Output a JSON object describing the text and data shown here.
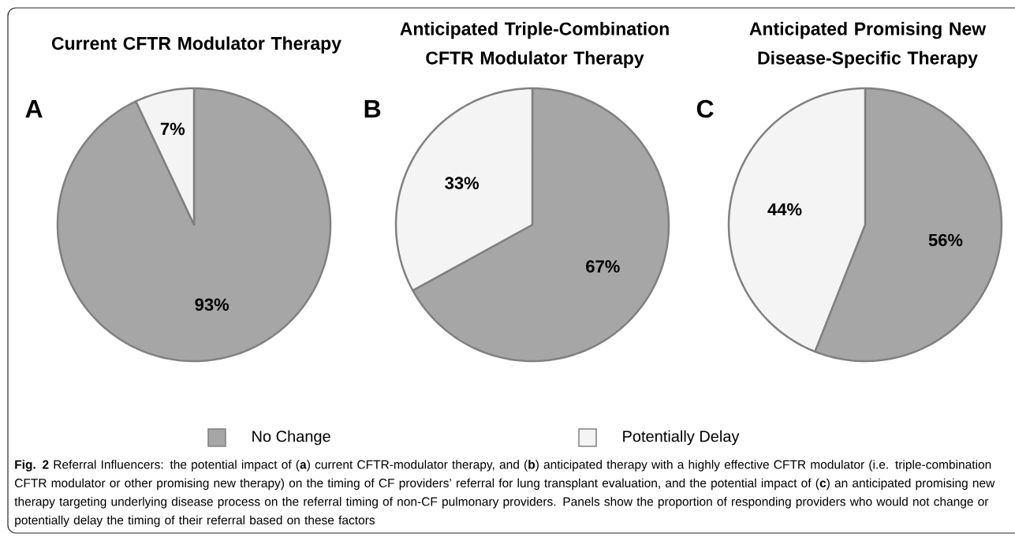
{
  "chart_data": [
    {
      "type": "pie",
      "title": "Current CFTR Modulator Therapy",
      "categories": [
        "No Change",
        "Potentially Delay"
      ],
      "values": [
        93,
        7
      ],
      "value_labels": [
        "93%",
        "7%"
      ],
      "colors": [
        "#a6a6a6",
        "#f4f4f4"
      ],
      "legend": "bottom",
      "annotations": [
        "A",
        "**Fig. 2** Referral Influencers: the potential impact of (**a**) current CFTR-modulator therapy, and (**b**) anticipated therapy with a highly effective CFTR modulator (i.e. triple-combination CFTR modulator or other promising new therapy) on the timing of CF providers’ referral for lung transplant evaluation, and the potential impact of (**c**) an anticipated promising new therapy targeting underlying disease process on the referral timing of non-CF pulmonary providers. Panels show the proportion of responding providers who would not change or potentially delay the timing of their referral based on these factors"
      ]
    },
    {
      "type": "pie",
      "title": "Anticipated Triple-Combination CFTR Modulator Therapy",
      "values": [
        67,
        33
      ],
      "value_labels": [
        "67%",
        "33%"
      ],
      "colors": [
        "#a6a6a6",
        "#f4f4f4"
      ],
      "annotations": [
        "B"
      ]
    },
    {
      "type": "pie",
      "title": "Anticipated Promising New Disease-Specific Therapy",
      "values": [
        56,
        44
      ],
      "value_labels": [
        "56%",
        "44%"
      ],
      "colors": [
        "#a6a6a6",
        "#f4f4f4"
      ],
      "annotations": [
        "C"
      ]
    }
  ]
}
